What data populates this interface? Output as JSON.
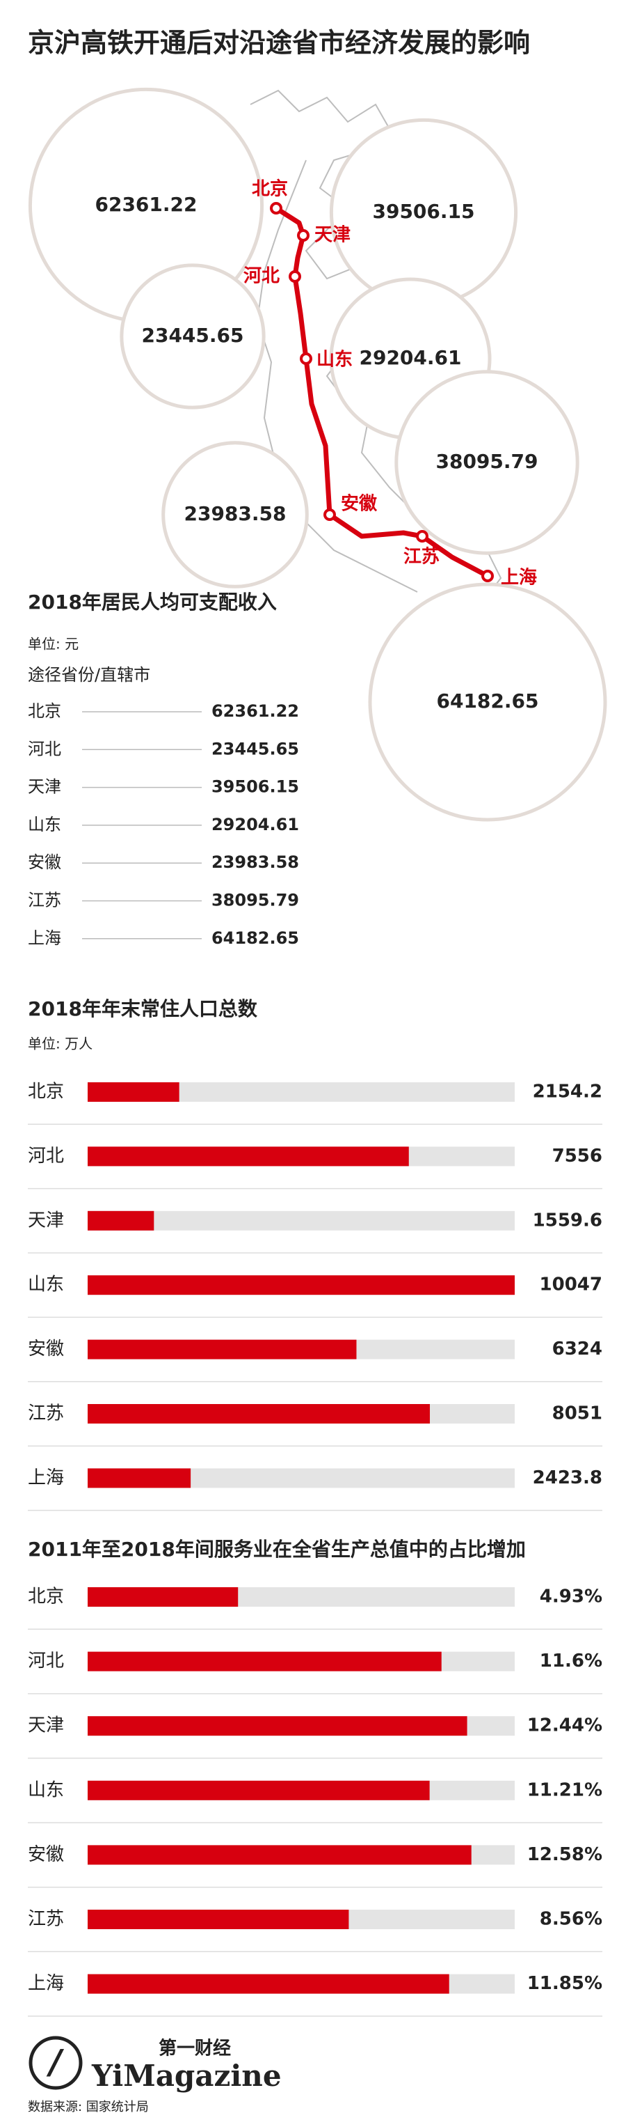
{
  "title": "京沪高铁开通后对沿途省市经济发展的影响",
  "chart_data": [
    {
      "type": "bubble",
      "title": "2018年居民人均可支配收入",
      "unit": "单位: 元",
      "column_header": "途径省份/直辖市",
      "categories": [
        "北京",
        "河北",
        "天津",
        "山东",
        "安徽",
        "江苏",
        "上海"
      ],
      "values": [
        62361.22,
        23445.65,
        39506.15,
        29204.61,
        23983.58,
        38095.79,
        64182.65
      ],
      "color": "#d7000f"
    },
    {
      "type": "bar",
      "title": "2018年年末常住人口总数",
      "unit": "单位: 万人",
      "categories": [
        "北京",
        "河北",
        "天津",
        "山东",
        "安徽",
        "江苏",
        "上海"
      ],
      "values": [
        2154.2,
        7556,
        1559.6,
        10047,
        6324,
        8051,
        2423.8
      ],
      "xlim": [
        0,
        10047
      ],
      "color": "#d7000f"
    },
    {
      "type": "bar",
      "title": "2011年至2018年间服务业在全省生产总值中的占比增加",
      "categories": [
        "北京",
        "河北",
        "天津",
        "山东",
        "安徽",
        "江苏",
        "上海"
      ],
      "values": [
        4.93,
        11.6,
        12.44,
        11.21,
        12.58,
        8.56,
        11.85
      ],
      "value_labels": [
        "4.93%",
        "11.6%",
        "12.44%",
        "11.21%",
        "12.58%",
        "8.56%",
        "11.85%"
      ],
      "xlim": [
        0,
        14
      ],
      "color": "#d7000f"
    }
  ],
  "footer": {
    "brand_cn": "第一财经",
    "brand_en": "YiMagazine",
    "source": "数据来源: 国家统计局"
  }
}
